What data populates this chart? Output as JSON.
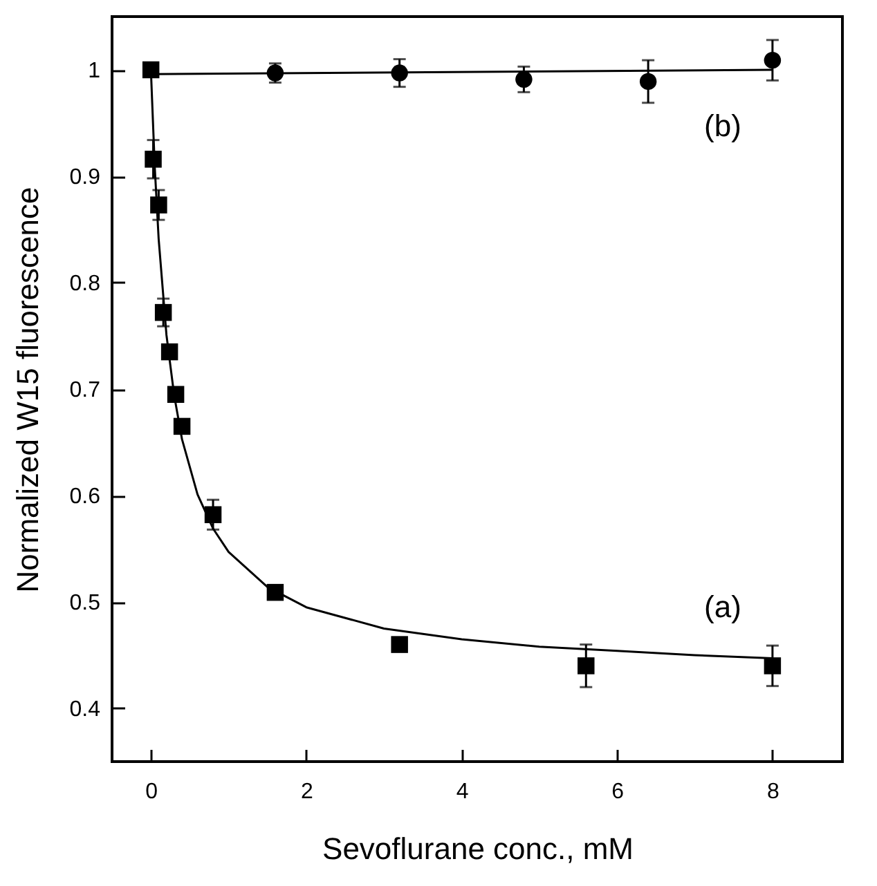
{
  "chart_data": {
    "type": "scatter",
    "xlabel": "Sevoflurane conc., mM",
    "ylabel": "Normalized W15 fluorescence",
    "xlim": [
      -0.5,
      8.9
    ],
    "ylim": [
      0.35,
      1.05
    ],
    "xticks": [
      0,
      2,
      4,
      6,
      8
    ],
    "yticks": [
      0.4,
      0.5,
      0.6,
      0.7,
      0.8,
      0.9,
      1
    ],
    "grid": false,
    "series": [
      {
        "name": "(a)",
        "marker": "square",
        "color": "#000000",
        "x": [
          0,
          0.03,
          0.1,
          0.16,
          0.24,
          0.32,
          0.4,
          0.8,
          1.6,
          3.2,
          5.6,
          8
        ],
        "values": [
          1.0,
          0.916,
          0.873,
          0.772,
          0.735,
          0.695,
          0.665,
          0.582,
          0.509,
          0.46,
          0.44,
          0.44
        ],
        "errors": [
          null,
          0.018,
          0.014,
          0.013,
          null,
          null,
          null,
          0.014,
          0.006,
          null,
          0.02,
          0.019
        ]
      },
      {
        "name": "(b)",
        "marker": "circle",
        "color": "#000000",
        "x": [
          1.6,
          3.2,
          4.8,
          6.4,
          8
        ],
        "values": [
          0.997,
          0.997,
          0.991,
          0.989,
          1.009
        ],
        "errors": [
          0.009,
          0.013,
          0.012,
          0.02,
          0.019
        ]
      },
      {
        "type": "line",
        "marker": "none",
        "line_style": "solid",
        "color": "#000000",
        "x": [
          0,
          0.05,
          0.1,
          0.2,
          0.3,
          0.4,
          0.6,
          0.8,
          1,
          1.5,
          2,
          3,
          4,
          5,
          6,
          7,
          8
        ],
        "values": [
          1.0,
          0.908,
          0.841,
          0.751,
          0.694,
          0.653,
          0.601,
          0.569,
          0.547,
          0.514,
          0.495,
          0.475,
          0.465,
          0.458,
          0.454,
          0.45,
          0.447
        ]
      },
      {
        "type": "line",
        "marker": "none",
        "line_style": "solid",
        "color": "#000000",
        "x": [
          0,
          8
        ],
        "values": [
          0.996,
          1.0
        ]
      }
    ]
  }
}
